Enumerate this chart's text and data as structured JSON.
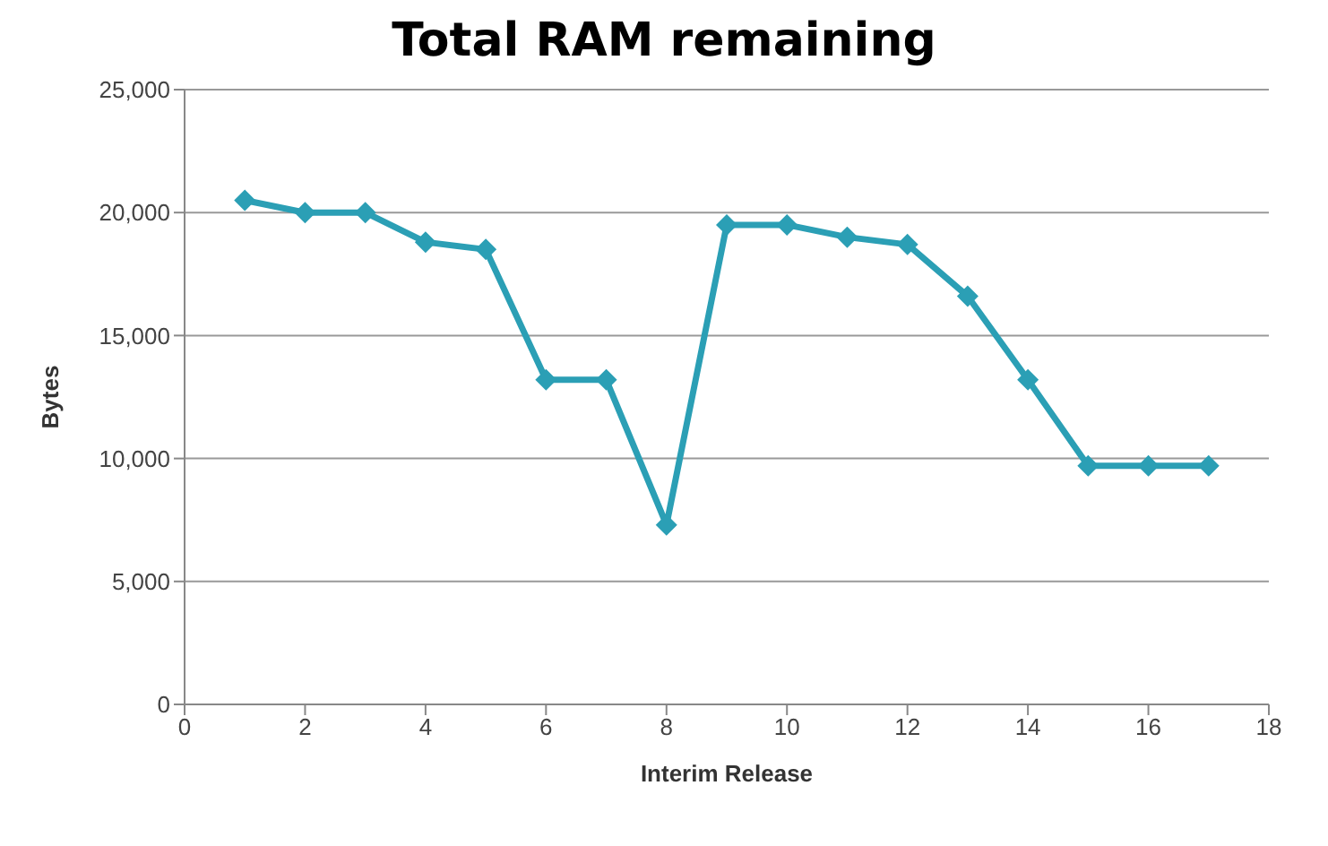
{
  "chart_data": {
    "type": "line",
    "title": "Total RAM remaining",
    "xlabel": "Interim Release",
    "ylabel": "Bytes",
    "x": [
      1,
      2,
      3,
      4,
      5,
      6,
      7,
      8,
      9,
      10,
      11,
      12,
      13,
      14,
      15,
      16,
      17
    ],
    "series": [
      {
        "color": "#2b9fb5",
        "values": [
          20500,
          20000,
          20000,
          18800,
          18500,
          13200,
          13200,
          7300,
          19500,
          19500,
          19000,
          18700,
          16600,
          13200,
          9700,
          9700,
          9700
        ]
      }
    ],
    "xlim": [
      0,
      18
    ],
    "xticks": [
      0,
      2,
      4,
      6,
      8,
      10,
      12,
      14,
      16,
      18
    ],
    "ylim": [
      0,
      25000
    ],
    "yticks": [
      {
        "value": 0,
        "label": "0"
      },
      {
        "value": 5000,
        "label": "5,000"
      },
      {
        "value": 10000,
        "label": "10,000"
      },
      {
        "value": 15000,
        "label": "15,000"
      },
      {
        "value": 20000,
        "label": "20,000"
      },
      {
        "value": 25000,
        "label": "25,000"
      }
    ],
    "grid": "y",
    "marker": "diamond",
    "line_style": "solid",
    "legend": false
  }
}
